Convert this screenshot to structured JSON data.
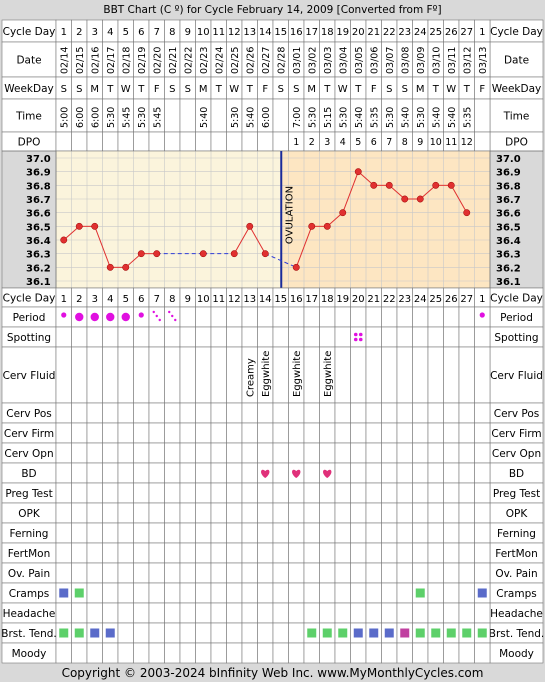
{
  "header": {
    "title": "BBT Chart (C º) for Cycle February 14, 2009  [Converted from Fº]"
  },
  "row_labels": {
    "cycle_day": "Cycle Day",
    "date": "Date",
    "weekday": "WeekDay",
    "time": "Time",
    "dpo": "DPO",
    "period": "Period",
    "spotting": "Spotting",
    "cerv_fluid": "Cerv Fluid",
    "cerv_pos": "Cerv Pos",
    "cerv_firm": "Cerv Firm",
    "cerv_opn": "Cerv Opn",
    "bd": "BD",
    "preg_test": "Preg Test",
    "opk": "OPK",
    "ferning": "Ferning",
    "fertmon": "FertMon",
    "ov_pain": "Ov. Pain",
    "cramps": "Cramps",
    "headache": "Headache",
    "brst_tend": "Brst. Tend.",
    "moody": "Moody"
  },
  "chart_data": {
    "type": "line",
    "title": "BBT Chart (C º) for Cycle February 14, 2009  [Converted from Fº]",
    "cycle_days": [
      "1",
      "2",
      "3",
      "4",
      "5",
      "6",
      "7",
      "8",
      "9",
      "10",
      "11",
      "12",
      "13",
      "14",
      "15",
      "16",
      "17",
      "18",
      "19",
      "20",
      "21",
      "22",
      "23",
      "24",
      "25",
      "26",
      "27",
      "1"
    ],
    "dates": [
      "02/14",
      "02/15",
      "02/16",
      "02/17",
      "02/18",
      "02/19",
      "02/20",
      "02/21",
      "02/22",
      "02/23",
      "02/24",
      "02/25",
      "02/26",
      "02/27",
      "02/28",
      "03/01",
      "03/02",
      "03/03",
      "03/04",
      "03/05",
      "03/06",
      "03/07",
      "03/08",
      "03/09",
      "03/10",
      "03/11",
      "03/12",
      "03/13"
    ],
    "weekdays": [
      "S",
      "S",
      "M",
      "T",
      "W",
      "T",
      "F",
      "S",
      "S",
      "M",
      "T",
      "W",
      "T",
      "F",
      "S",
      "S",
      "M",
      "T",
      "W",
      "T",
      "F",
      "S",
      "S",
      "M",
      "T",
      "W",
      "T",
      "F"
    ],
    "times": [
      "5:00",
      "6:00",
      "6:00",
      "5:30",
      "5:45",
      "5:30",
      "5:45",
      "",
      "",
      "5:40",
      "",
      "5:30",
      "5:40",
      "6:00",
      "",
      "7:00",
      "5:30",
      "5:15",
      "5:30",
      "5:40",
      "5:35",
      "5:30",
      "5:40",
      "5:30",
      "5:40",
      "5:40",
      "5:35",
      ""
    ],
    "dpo": [
      "",
      "",
      "",
      "",
      "",
      "",
      "",
      "",
      "",
      "",
      "",
      "",
      "",
      "",
      "",
      "1",
      "2",
      "3",
      "4",
      "5",
      "6",
      "7",
      "8",
      "9",
      "10",
      "11",
      "12",
      ""
    ],
    "y_ticks": [
      "37.0",
      "36.9",
      "36.8",
      "36.7",
      "36.6",
      "36.5",
      "36.4",
      "36.3",
      "36.2",
      "36.1"
    ],
    "ylim": [
      36.1,
      37.0
    ],
    "temps": [
      36.4,
      36.5,
      36.5,
      36.2,
      36.2,
      36.3,
      36.3,
      null,
      null,
      36.3,
      null,
      36.3,
      36.5,
      36.3,
      null,
      36.2,
      36.5,
      36.5,
      36.6,
      36.9,
      36.8,
      36.8,
      36.7,
      36.7,
      36.8,
      36.8,
      36.6,
      null
    ],
    "ovulation_label": "OVULATION",
    "ovulation_after_day": 15,
    "colors": {
      "line": "#e03030",
      "point": "#e03030",
      "gap_line": "#2e3cd6",
      "ovulation": "#1a2a9a",
      "pre_bg": "#fbf4dc",
      "post_bg": "#fde6c2"
    }
  },
  "events": {
    "period": [
      {
        "d": 1,
        "k": "dot-small"
      },
      {
        "d": 2,
        "k": "dot"
      },
      {
        "d": 3,
        "k": "dot"
      },
      {
        "d": 4,
        "k": "dot"
      },
      {
        "d": 5,
        "k": "dot"
      },
      {
        "d": 6,
        "k": "dot-small"
      },
      {
        "d": 7,
        "k": "spot-diag"
      },
      {
        "d": 8,
        "k": "spot-diag"
      },
      {
        "d": 28,
        "k": "dot-small"
      }
    ],
    "spotting": [
      {
        "d": 20,
        "k": "quad"
      }
    ],
    "cerv_fluid": [
      {
        "d": 13,
        "v": "Creamy"
      },
      {
        "d": 14,
        "v": "Eggwhite"
      },
      {
        "d": 16,
        "v": "Eggwhite"
      },
      {
        "d": 18,
        "v": "Eggwhite"
      }
    ],
    "bd": [
      14,
      16,
      18
    ],
    "cramps": [
      {
        "d": 1,
        "c": "#5a6bc9"
      },
      {
        "d": 2,
        "c": "#5dd06a"
      },
      {
        "d": 24,
        "c": "#5dd06a"
      },
      {
        "d": 28,
        "c": "#5a6bc9"
      }
    ],
    "brst_tend": [
      {
        "d": 1,
        "c": "#5dd06a"
      },
      {
        "d": 2,
        "c": "#5dd06a"
      },
      {
        "d": 3,
        "c": "#5a6bc9"
      },
      {
        "d": 4,
        "c": "#5a6bc9"
      },
      {
        "d": 17,
        "c": "#5dd06a"
      },
      {
        "d": 18,
        "c": "#5dd06a"
      },
      {
        "d": 19,
        "c": "#5dd06a"
      },
      {
        "d": 20,
        "c": "#5a6bc9"
      },
      {
        "d": 21,
        "c": "#5a6bc9"
      },
      {
        "d": 22,
        "c": "#5a6bc9"
      },
      {
        "d": 23,
        "c": "#c040a0"
      },
      {
        "d": 24,
        "c": "#5dd06a"
      },
      {
        "d": 25,
        "c": "#5dd06a"
      },
      {
        "d": 26,
        "c": "#5dd06a"
      },
      {
        "d": 27,
        "c": "#5dd06a"
      },
      {
        "d": 28,
        "c": "#5dd06a"
      }
    ]
  },
  "colors": {
    "period": "#e010e0",
    "spotting": "#e010e0",
    "heart": "#e0307a",
    "background": "#d9d9d9",
    "cell": "#ffffff"
  },
  "footer": {
    "text": "Copyright © 2003-2024 bInfinity Web Inc.    www.MyMonthlyCycles.com"
  }
}
